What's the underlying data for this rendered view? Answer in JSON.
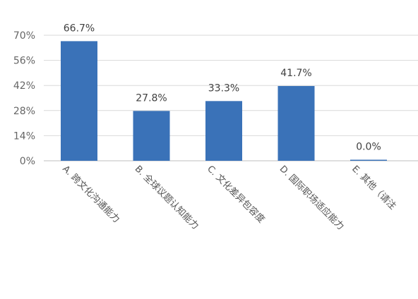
{
  "chart_data": {
    "type": "bar",
    "categories": [
      "A. 跨文化沟通能力",
      "B. 全球议题认知能力",
      "C. 文化差异包容度",
      "D. 国际职场适应能力",
      "E. 其他（请注"
    ],
    "values": [
      66.7,
      27.8,
      33.3,
      41.7,
      0.0
    ],
    "data_labels": [
      "66.7%",
      "27.8%",
      "33.3%",
      "41.7%",
      "0.0%"
    ],
    "yticks": [
      "0%",
      "14%",
      "28%",
      "42%",
      "56%",
      "70%"
    ],
    "ylim": [
      0,
      70
    ],
    "grid": true,
    "bar_color": "#3a72b8",
    "title": "",
    "xlabel": "",
    "ylabel": ""
  }
}
